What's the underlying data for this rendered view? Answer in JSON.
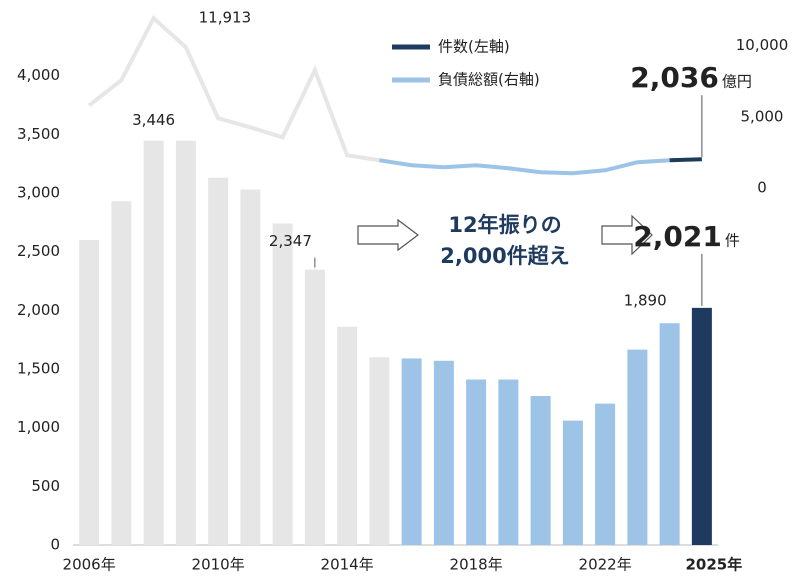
{
  "chart_data": {
    "type": "bar_line",
    "categories": [
      "2006年",
      null,
      null,
      null,
      "2010年",
      null,
      null,
      null,
      "2014年",
      null,
      null,
      null,
      "2018年",
      null,
      null,
      null,
      "2022年",
      null,
      null,
      "2025年"
    ],
    "series": [
      {
        "name": "件数(左軸)",
        "type": "bar",
        "color": "#1f3a5f",
        "values": [
          2600,
          2930,
          3446,
          3446,
          3130,
          3030,
          2740,
          2347,
          1860,
          1600,
          1590,
          1570,
          1410,
          1410,
          1270,
          1060,
          1205,
          1665,
          1890,
          2021
        ],
        "value_labels": [
          null,
          null,
          "3,446",
          null,
          null,
          null,
          null,
          "2,347",
          null,
          null,
          null,
          null,
          null,
          null,
          null,
          null,
          null,
          null,
          "1,890",
          "2,021"
        ],
        "colors": [
          "#e6e6e6",
          "#e6e6e6",
          "#e6e6e6",
          "#e6e6e6",
          "#e6e6e6",
          "#e6e6e6",
          "#e6e6e6",
          "#e6e6e6",
          "#e6e6e6",
          "#e6e6e6",
          "#9dc3e6",
          "#9dc3e6",
          "#9dc3e6",
          "#9dc3e6",
          "#9dc3e6",
          "#9dc3e6",
          "#9dc3e6",
          "#9dc3e6",
          "#9dc3e6",
          "#1f3a5f"
        ]
      },
      {
        "name": "負債総額(右軸)",
        "type": "line",
        "axis": "y2",
        "color": "#9dc3e6",
        "values": [
          5800,
          7570,
          11913,
          9880,
          4900,
          4270,
          3570,
          8270,
          2310,
          1960,
          1610,
          1470,
          1610,
          1400,
          1120,
          1050,
          1260,
          1820,
          1960,
          2036
        ],
        "value_labels": [
          null,
          null,
          "11,913",
          null,
          null,
          null,
          null,
          null,
          null,
          null,
          null,
          null,
          null,
          null,
          null,
          null,
          null,
          null,
          null,
          "2,036"
        ],
        "colors": [
          "#e6e6e6",
          "#e6e6e6",
          "#e6e6e6",
          "#e6e6e6",
          "#e6e6e6",
          "#e6e6e6",
          "#e6e6e6",
          "#e6e6e6",
          "#e6e6e6",
          "#e6e6e6",
          "#9dc3e6",
          "#9dc3e6",
          "#9dc3e6",
          "#9dc3e6",
          "#9dc3e6",
          "#9dc3e6",
          "#9dc3e6",
          "#9dc3e6",
          "#9dc3e6",
          "#1f3a5f"
        ]
      }
    ],
    "y_unit": "件",
    "y2_unit": "億円",
    "ylim": [
      0,
      4500
    ],
    "yticks": [
      0,
      500,
      {
        "value": 1000,
        "label": "1,000"
      },
      {
        "value": 1500,
        "label": "1,500"
      },
      {
        "value": 2000,
        "label": "2,000"
      },
      {
        "value": 2500,
        "label": "2,500"
      },
      {
        "value": 3000,
        "label": "3,000"
      },
      {
        "value": 3500,
        "label": "3,500"
      },
      {
        "value": 4000,
        "label": "4,000"
      }
    ],
    "y2lim": [
      -25000,
      12000
    ],
    "y2ticks": [
      0,
      {
        "value": 5000,
        "label": "5,000"
      },
      {
        "value": 10000,
        "label": "10,000"
      }
    ],
    "annotations": [
      "12年振りの",
      "2,000件超え"
    ],
    "grid": false
  }
}
